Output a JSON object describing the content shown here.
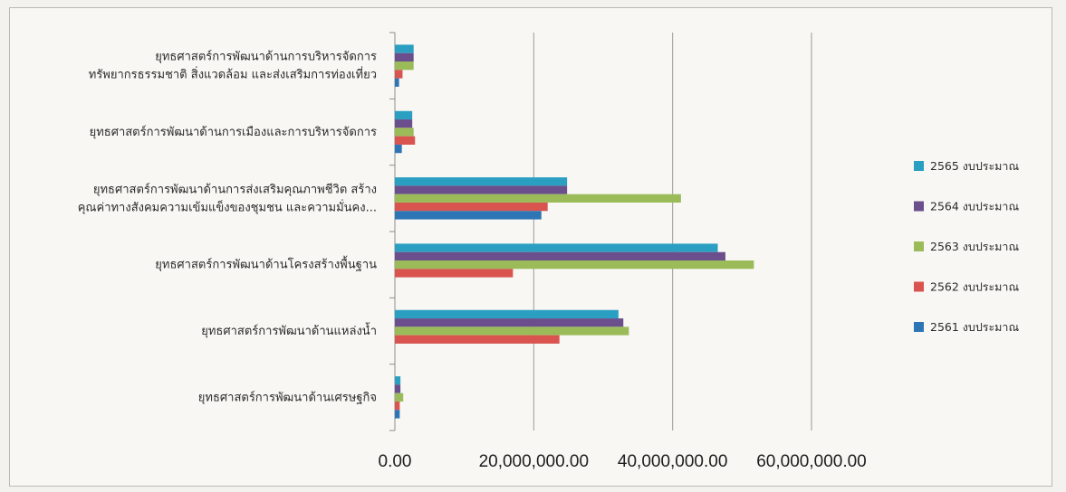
{
  "chart_data": {
    "type": "bar",
    "orientation": "horizontal",
    "categories": [
      [
        "ยุทธศาสตร์การพัฒนาด้านการบริหารจัดการ",
        "ทรัพยากรธรรมชาติ สิ่งแวดล้อม และส่งเสริมการท่องเที่ยว"
      ],
      [
        "ยุทธศาสตร์การพัฒนาด้านการเมืองและการบริหารจัดการ"
      ],
      [
        "ยุทธศาสตร์การพัฒนาด้านการส่งเสริมคุณภาพชีวิต สร้าง",
        "คุณค่าทางสังคมความเข้มแข็งของชุมชน และความมั่นคง..."
      ],
      [
        "ยุทธศาสตร์การพัฒนาด้านโครงสร้างพื้นฐาน"
      ],
      [
        "ยุทธศาสตร์การพัฒนาด้านแหล่งน้ำ"
      ],
      [
        "ยุทธศาสตร์การพัฒนาด้านเศรษฐกิจ"
      ]
    ],
    "series": [
      {
        "name": "2565 งบประมาณ",
        "color": "#2b9fc2",
        "values": [
          2700000,
          2500000,
          24800000,
          46500000,
          32200000,
          800000
        ]
      },
      {
        "name": "2564 งบประมาณ",
        "color": "#6a4f8c",
        "values": [
          2700000,
          2500000,
          24800000,
          47600000,
          32900000,
          800000
        ]
      },
      {
        "name": "2563 งบประมาณ",
        "color": "#9bbb59",
        "values": [
          2700000,
          2700000,
          41200000,
          51700000,
          33700000,
          1200000
        ]
      },
      {
        "name": "2562 งบประมาณ",
        "color": "#d9534f",
        "values": [
          1100000,
          2900000,
          22000000,
          17000000,
          23700000,
          700000
        ]
      },
      {
        "name": "2561 งบประมาณ",
        "color": "#2e75b6",
        "values": [
          600000,
          1000000,
          21100000,
          0,
          0,
          700000
        ]
      }
    ],
    "x_ticks": [
      "0.00",
      "20,000,000.00",
      "40,000,000.00",
      "60,000,000.00"
    ],
    "xlim": [
      0,
      60000000
    ],
    "grid": true,
    "legend_position": "right"
  }
}
